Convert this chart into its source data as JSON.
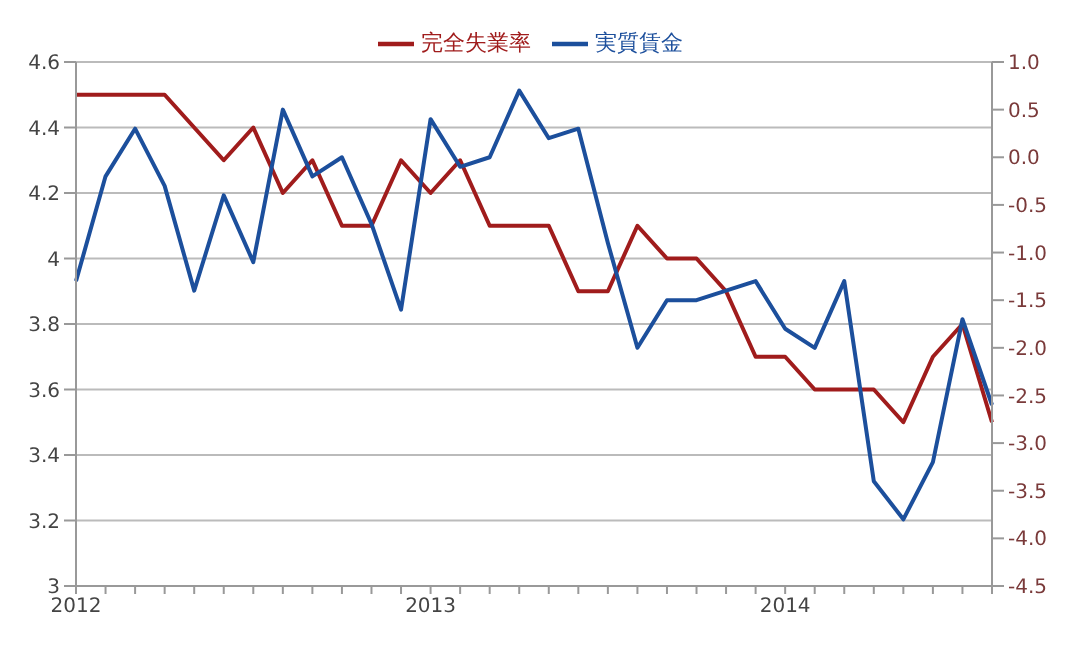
{
  "chart_data": {
    "type": "line",
    "categories": [
      "2012",
      null,
      null,
      null,
      null,
      null,
      null,
      null,
      null,
      null,
      null,
      null,
      "2013",
      null,
      null,
      null,
      null,
      null,
      null,
      null,
      null,
      null,
      null,
      null,
      "2014",
      null,
      null,
      null,
      null,
      null,
      null,
      null
    ],
    "series": [
      {
        "name": "完全失業率",
        "color": "#a01c1c",
        "values": [
          4.5,
          4.5,
          4.5,
          4.5,
          4.4,
          4.3,
          4.4,
          4.2,
          4.3,
          4.1,
          4.1,
          4.3,
          4.2,
          4.3,
          4.1,
          4.1,
          4.1,
          3.9,
          3.9,
          4.1,
          4.0,
          4.0,
          3.9,
          3.7,
          3.7,
          3.6,
          3.6,
          3.6,
          3.5,
          3.7,
          3.8,
          3.5
        ]
      },
      {
        "name": "実質賃金",
        "color": "#1c4f9c",
        "axis": "y2",
        "values": [
          -1.3,
          -0.2,
          0.3,
          -0.3,
          -1.4,
          -0.4,
          -1.1,
          0.5,
          -0.2,
          0.0,
          -0.7,
          -1.6,
          0.4,
          -0.1,
          0.0,
          0.7,
          0.2,
          0.3,
          -0.9,
          -2.0,
          -1.5,
          -1.5,
          -1.4,
          -1.3,
          -1.8,
          -2.0,
          -1.3,
          -3.4,
          -3.8,
          -3.2,
          -1.7,
          -2.6
        ]
      }
    ],
    "ylim": [
      3,
      4.6
    ],
    "yticks": [
      3,
      3.2,
      3.4,
      3.6,
      3.8,
      4,
      4.2,
      4.4,
      4.6
    ],
    "y2lim": [
      -4.5,
      1.0
    ],
    "y2ticks": [
      {
        "value": -4.5,
        "label": "-4.5"
      },
      {
        "value": -4,
        "label": "-4.0"
      },
      {
        "value": -3.5,
        "label": "-3.5"
      },
      {
        "value": -3,
        "label": "-3.0"
      },
      {
        "value": -2.5,
        "label": "-2.5"
      },
      {
        "value": -2,
        "label": "-2.0"
      },
      {
        "value": -1.5,
        "label": "-1.5"
      },
      {
        "value": -1,
        "label": "-1.0"
      },
      {
        "value": -0.5,
        "label": "-0.5"
      },
      {
        "value": 0,
        "label": "0.0"
      },
      {
        "value": 0.5,
        "label": "0.5"
      },
      {
        "value": 1,
        "label": "1.0"
      }
    ],
    "grid": "y",
    "legend": "top",
    "marker": "none",
    "line_style": "solid"
  }
}
